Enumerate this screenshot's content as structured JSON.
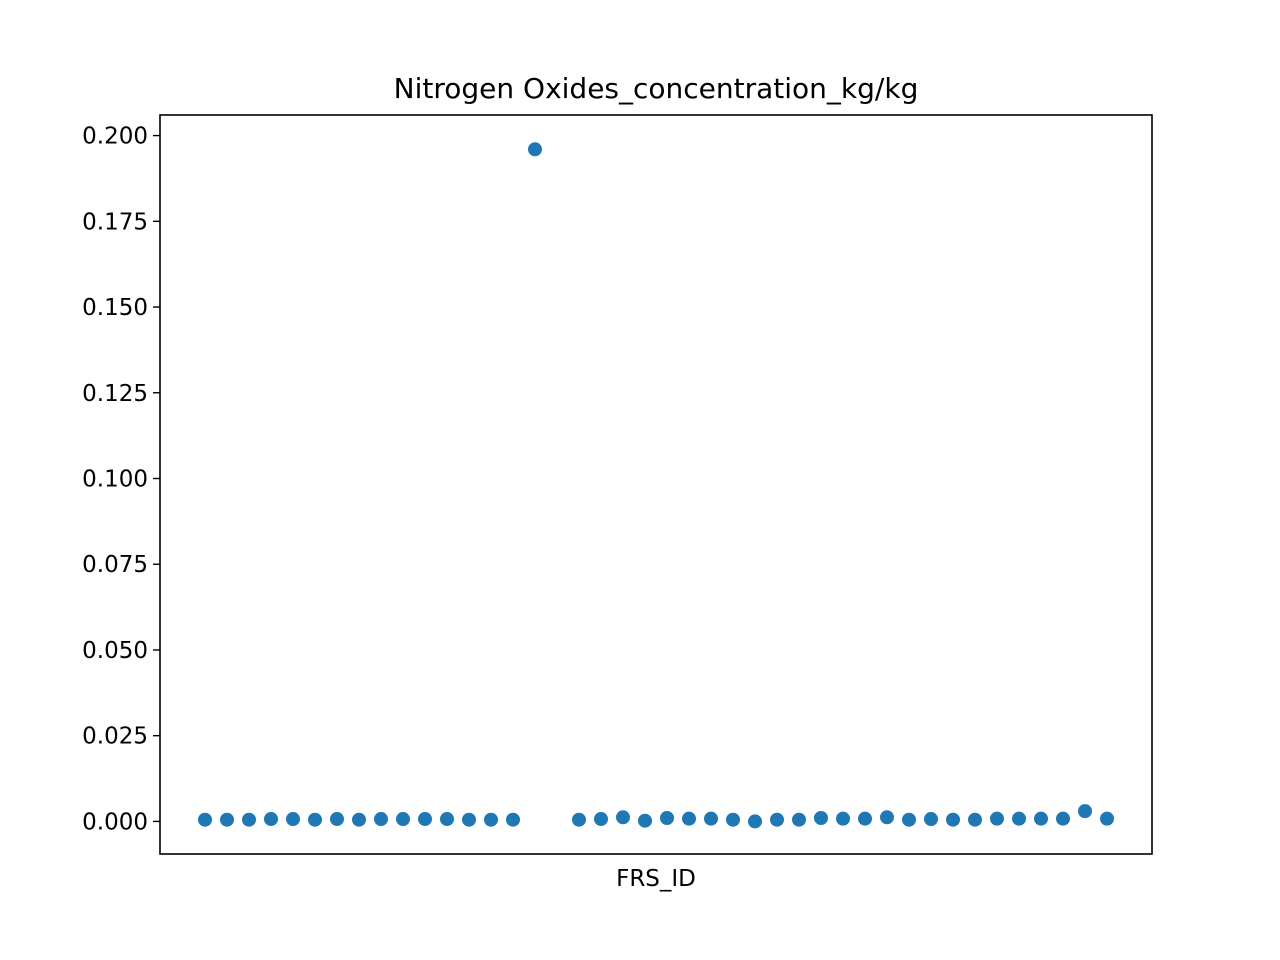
{
  "chart_data": {
    "type": "scatter",
    "title": "Nitrogen Oxides_concentration_kg/kg",
    "xlabel": "FRS_ID",
    "ylabel": "",
    "xticks_visible": false,
    "ylim": [
      -0.0095,
      0.206
    ],
    "yticks": [
      0.0,
      0.025,
      0.05,
      0.075,
      0.1,
      0.125,
      0.15,
      0.175,
      0.2
    ],
    "ytick_labels": [
      "0.000",
      "0.025",
      "0.050",
      "0.075",
      "0.100",
      "0.125",
      "0.150",
      "0.175",
      "0.200"
    ],
    "color": "#1f77b4",
    "grid": false,
    "legend": "none",
    "x": [
      0,
      1,
      2,
      3,
      4,
      5,
      6,
      7,
      8,
      9,
      10,
      11,
      12,
      13,
      14,
      15,
      16,
      17,
      18,
      19,
      20,
      21,
      22,
      23,
      24,
      25,
      26,
      27,
      28,
      29,
      30,
      31,
      32,
      33,
      34,
      35,
      36,
      37,
      38,
      39,
      40,
      41
    ],
    "values": [
      0.0005,
      0.0005,
      0.0005,
      0.0007,
      0.0007,
      0.0005,
      0.0007,
      0.0005,
      0.0007,
      0.0007,
      0.0007,
      0.0007,
      0.0005,
      0.0005,
      0.0005,
      0.196,
      null,
      0.0005,
      0.0007,
      0.0012,
      0.0002,
      0.001,
      0.0008,
      0.0008,
      0.0005,
      0.0,
      0.0005,
      0.0005,
      0.001,
      0.0008,
      0.0008,
      0.0012,
      0.0005,
      0.0007,
      0.0005,
      0.0005,
      0.0008,
      0.0008,
      0.0008,
      0.0008,
      0.003,
      0.0008
    ]
  }
}
